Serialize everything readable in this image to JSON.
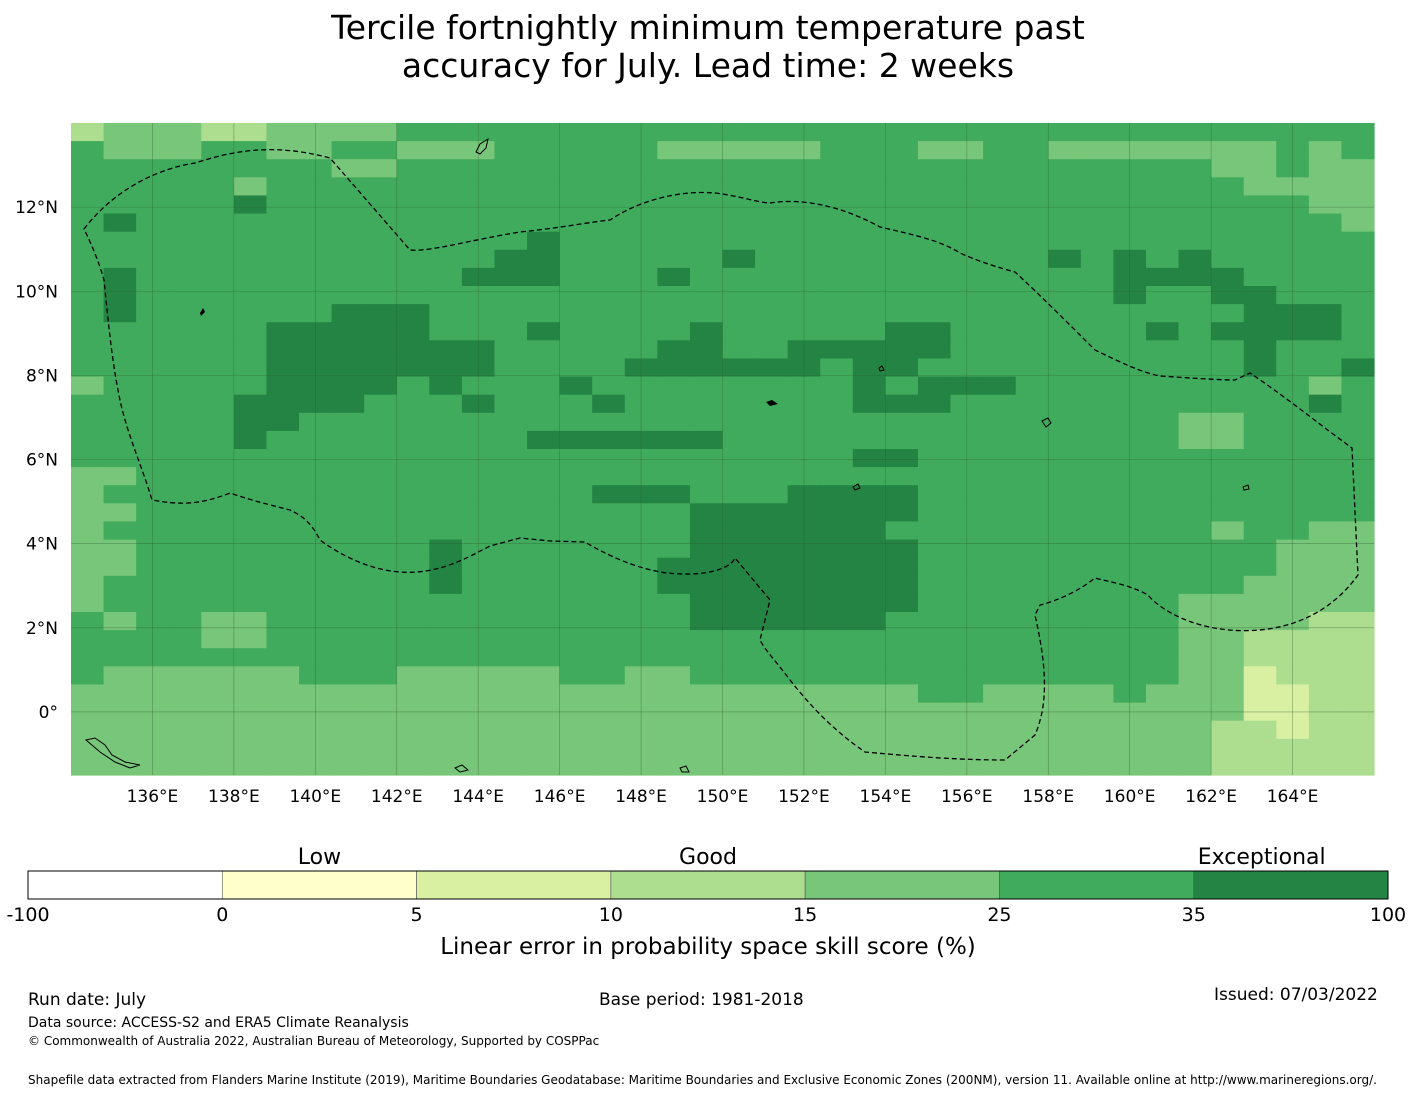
{
  "title": {
    "line1": "Tercile fortnightly minimum temperature past",
    "line2": "accuracy for July. Lead time: 2 weeks"
  },
  "map": {
    "lon_labels": [
      "136°E",
      "138°E",
      "140°E",
      "142°E",
      "144°E",
      "146°E",
      "148°E",
      "150°E",
      "152°E",
      "154°E",
      "156°E",
      "158°E",
      "160°E",
      "162°E",
      "164°E"
    ],
    "lat_labels": [
      "12°N",
      "10°N",
      "8°N",
      "6°N",
      "4°N",
      "2°N",
      "0°"
    ],
    "lon_range": [
      134.0,
      166.0
    ],
    "lat_range": [
      -1.5,
      14.0
    ],
    "grid_cell_lon": 0.833,
    "grid_cell_lat": 0.555,
    "skill_grid_note": "values are LEPS skill score class index 0-6 per cell, row 0 = north",
    "skill_rows": [
      "3444334444555555555555555555555555555555",
      "5444554455444555554444455544554444444545",
      "5555555544555555555555555555555555544544",
      "5555545555555555555555555555555555554444",
      "5555565555555555555555555555555555555544",
      "5655555555555555555555555555555555555554",
      "5555555555555565555555555555555555555555",
      "5555555555555665555565555555556565655555",
      "5655555555556665556555555555555566665555",
      "5655555555555555555555555555555565566555",
      "5655555566655555555555555555555555556665",
      "5555556666655565555655555665555556566665",
      "5555556666666555556655666665555555556555",
      "5555556666666555566666656655555555556556",
      "4555556666565556555555556566655555555545",
      "5555566665556555655555556665555555555565",
      "5555566555555555555555555555555555445555",
      "5555565555555566666655555555555555445555",
      "5555555555555555555555556655555555555555",
      "4455555555555555555555555555555555555555",
      "4555555555555555666555666655555555555555",
      "4455555555555555555666666655555555555555",
      "4555555555555555555666666555555555545544",
      "4455555555565555555666666655555555555444",
      "4455555555565555556666666655555555555444",
      "4555555555565555556666666655555555554444",
      "4555555555555555555666666655555555444444",
      "5455445555555555555666666555555555444433",
      "5555445555555555555555555555555555443333",
      "5555555555555555555555555555555555443333",
      "5444444555444445544555555555555555442333",
      "4444444444444444444444444455444454442233",
      "4444444444444444444444444444444444442233",
      "4444444444444444444444444444444444433233",
      "4444444444444444444444444444444444433333",
      "4444444444444444444444444444444444433333"
    ]
  },
  "legend": {
    "class_labels": [
      "Low",
      "Good",
      "Exceptional"
    ],
    "ticks": [
      "-100",
      "0",
      "5",
      "10",
      "15",
      "25",
      "35",
      "100"
    ],
    "colors": [
      "#ffffff",
      "#ffffcc",
      "#d9f0a3",
      "#addd8e",
      "#78c679",
      "#41ab5d",
      "#238443"
    ],
    "title": "Linear error in probability space skill score (%)"
  },
  "footer": {
    "run_date": "Run date: July",
    "base_period": "Base period: 1981-2018",
    "issued": "Issued: 07/03/2022",
    "data_source": "Data source: ACCESS-S2 and ERA5 Climate Reanalysis",
    "copyright": "© Commonwealth of Australia 2022, Australian Bureau of Meteorology, Supported by COSPPac",
    "shapefile": "Shapefile data extracted from Flanders Marine Institute (2019), Maritime Boundaries Geodatabase: Maritime Boundaries and Exclusive Economic Zones (200NM), version 11. Available online at http://www.marineregions.org/."
  }
}
